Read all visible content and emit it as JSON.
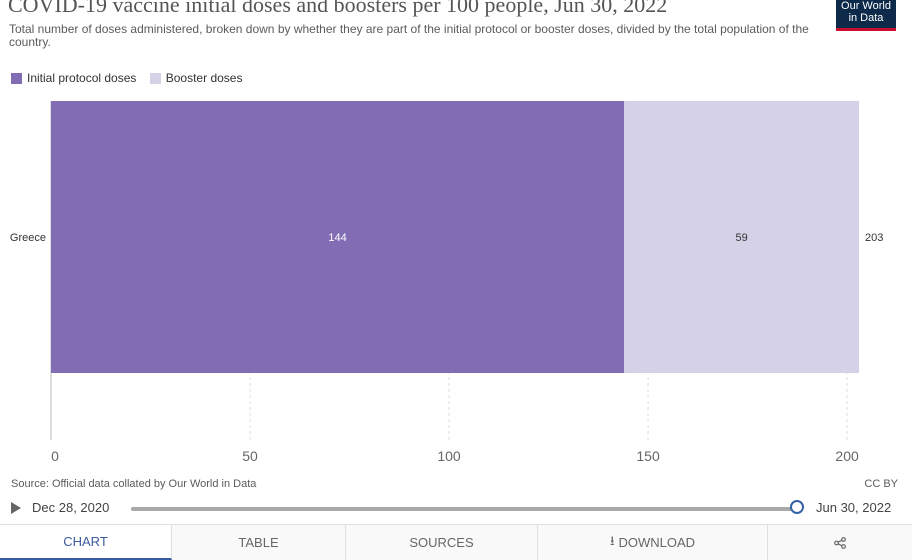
{
  "header": {
    "title": "COVID-19 vaccine initial doses and boosters per 100 people, Jun 30, 2022",
    "subtitle": "Total number of doses administered, broken down by whether they are part of the initial protocol or booster doses, divided by the total population of the country.",
    "logo_line1": "Our World",
    "logo_line2": "in Data"
  },
  "chart_data": {
    "type": "bar",
    "orientation": "horizontal",
    "stacked": true,
    "categories": [
      "Greece"
    ],
    "series": [
      {
        "name": "Initial protocol doses",
        "values": [
          144
        ],
        "color": "#826cb4"
      },
      {
        "name": "Booster doses",
        "values": [
          59
        ],
        "color": "#d5d1e6"
      }
    ],
    "totals": [
      203
    ],
    "xlim": [
      0,
      205
    ],
    "x_ticks": [
      0,
      50,
      100,
      150,
      200
    ],
    "legend_position": "top-left",
    "grid": "vertical-dashed"
  },
  "footer": {
    "source": "Source: Official data collated by Our World in Data",
    "license": "CC BY"
  },
  "timeline": {
    "start": "Dec 28, 2020",
    "end": "Jun 30, 2022"
  },
  "tabs": [
    {
      "label": "CHART",
      "icon": ""
    },
    {
      "label": "TABLE",
      "icon": ""
    },
    {
      "label": "SOURCES",
      "icon": ""
    },
    {
      "label": "DOWNLOAD",
      "icon": "⭳"
    },
    {
      "label": "",
      "icon": "share-icon"
    }
  ]
}
